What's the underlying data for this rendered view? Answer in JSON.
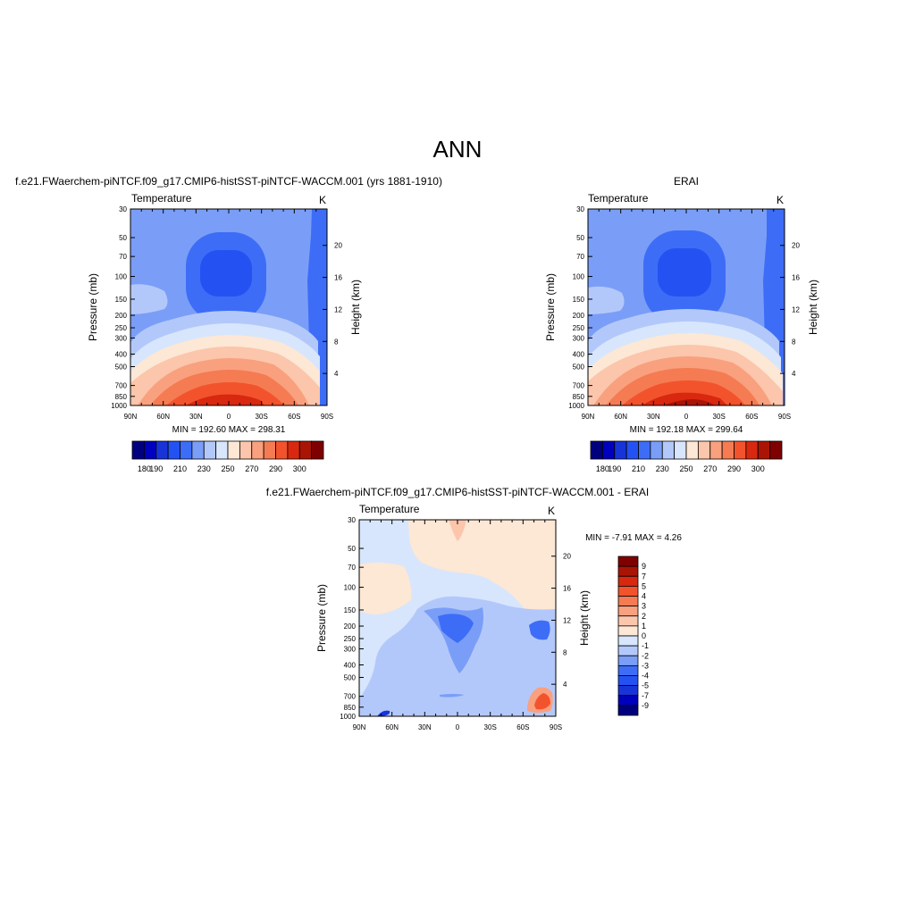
{
  "title": "ANN",
  "chart_data": [
    {
      "type": "heatmap",
      "id": "model",
      "title": "f.e21.FWaerchem-piNTCF.f09_g17.CMIP6-histSST-piNTCF-WACCM.001 (yrs 1881-1910)",
      "left_label": "Temperature",
      "right_label": "K",
      "xlabel": "",
      "ylabel": "Pressure (mb)",
      "y2label": "Height (km)",
      "x_ticks": [
        "90N",
        "60N",
        "30N",
        "0",
        "30S",
        "60S",
        "90S"
      ],
      "y_ticks": [
        "30",
        "50",
        "70",
        "100",
        "150",
        "200",
        "250",
        "300",
        "400",
        "500",
        "700",
        "850",
        "1000"
      ],
      "y2_ticks": [
        "4",
        "8",
        "12",
        "16",
        "20"
      ],
      "stats": "MIN = 192.60  MAX = 298.31",
      "colorbar_labels": [
        "180",
        "190",
        "210",
        "230",
        "250",
        "270",
        "290",
        "300"
      ],
      "colorbar_colors": [
        "#00007f",
        "#0000bf",
        "#1834d8",
        "#2452f2",
        "#3d6df7",
        "#7a9ef7",
        "#b3c8fa",
        "#d7e6fc",
        "#fde7d5",
        "#fbc6ab",
        "#f9a07f",
        "#f57b52",
        "#f2532d",
        "#d8280f",
        "#aa1405",
        "#7f0000"
      ],
      "grid": false
    },
    {
      "type": "heatmap",
      "id": "obs",
      "title": "ERAI",
      "left_label": "Temperature",
      "right_label": "K",
      "xlabel": "",
      "ylabel": "Pressure (mb)",
      "y2label": "Height (km)",
      "x_ticks": [
        "90N",
        "60N",
        "30N",
        "0",
        "30S",
        "60S",
        "90S"
      ],
      "y_ticks": [
        "30",
        "50",
        "70",
        "100",
        "150",
        "200",
        "250",
        "300",
        "400",
        "500",
        "700",
        "850",
        "1000"
      ],
      "y2_ticks": [
        "4",
        "8",
        "12",
        "16",
        "20"
      ],
      "stats": "MIN = 192.18  MAX = 299.64",
      "colorbar_labels": [
        "180",
        "190",
        "210",
        "230",
        "250",
        "270",
        "290",
        "300"
      ],
      "colorbar_colors": [
        "#00007f",
        "#0000bf",
        "#1834d8",
        "#2452f2",
        "#3d6df7",
        "#7a9ef7",
        "#b3c8fa",
        "#d7e6fc",
        "#fde7d5",
        "#fbc6ab",
        "#f9a07f",
        "#f57b52",
        "#f2532d",
        "#d8280f",
        "#aa1405",
        "#7f0000"
      ],
      "grid": false
    },
    {
      "type": "heatmap",
      "id": "diff",
      "title": "f.e21.FWaerchem-piNTCF.f09_g17.CMIP6-histSST-piNTCF-WACCM.001 - ERAI",
      "left_label": "Temperature",
      "right_label": "K",
      "xlabel": "",
      "ylabel": "Pressure (mb)",
      "y2label": "Height (km)",
      "x_ticks": [
        "90N",
        "60N",
        "30N",
        "0",
        "30S",
        "60S",
        "90S"
      ],
      "y_ticks": [
        "30",
        "50",
        "70",
        "100",
        "150",
        "200",
        "250",
        "300",
        "400",
        "500",
        "700",
        "850",
        "1000"
      ],
      "y2_ticks": [
        "4",
        "8",
        "12",
        "16",
        "20"
      ],
      "stats": "MIN =  -7.91  MAX =   4.26",
      "colorbar_labels": [
        "9",
        "7",
        "5",
        "4",
        "3",
        "2",
        "1",
        "0",
        "-1",
        "-2",
        "-3",
        "-4",
        "-5",
        "-7",
        "-9"
      ],
      "colorbar_colors": [
        "#7f0000",
        "#aa1405",
        "#d8280f",
        "#f2532d",
        "#f57b52",
        "#f9a07f",
        "#fbc6ab",
        "#fde7d5",
        "#d7e6fc",
        "#b3c8fa",
        "#7a9ef7",
        "#3d6df7",
        "#2452f2",
        "#1834d8",
        "#0000bf",
        "#00007f"
      ],
      "grid": false
    }
  ]
}
